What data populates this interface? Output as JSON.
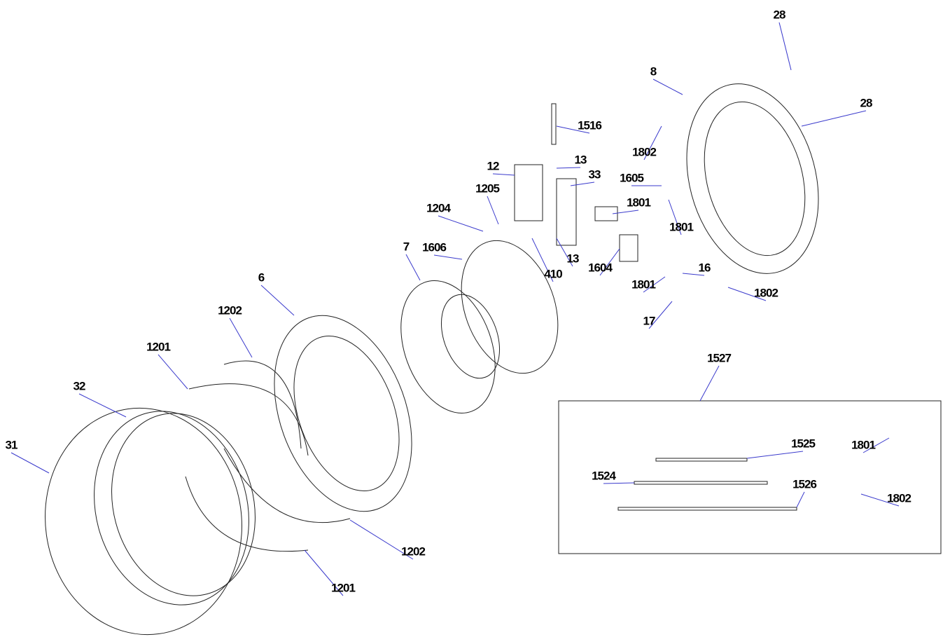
{
  "callouts": [
    {
      "label": "28"
    },
    {
      "label": "28"
    },
    {
      "label": "8"
    },
    {
      "label": "1516"
    },
    {
      "label": "1802"
    },
    {
      "label": "13"
    },
    {
      "label": "12"
    },
    {
      "label": "33"
    },
    {
      "label": "1605"
    },
    {
      "label": "1205"
    },
    {
      "label": "1801"
    },
    {
      "label": "1204"
    },
    {
      "label": "1801"
    },
    {
      "label": "7"
    },
    {
      "label": "1606"
    },
    {
      "label": "13"
    },
    {
      "label": "410"
    },
    {
      "label": "1604"
    },
    {
      "label": "16"
    },
    {
      "label": "6"
    },
    {
      "label": "1801"
    },
    {
      "label": "1802"
    },
    {
      "label": "1202"
    },
    {
      "label": "17"
    },
    {
      "label": "1527"
    },
    {
      "label": "1201"
    },
    {
      "label": "32"
    },
    {
      "label": "31"
    },
    {
      "label": "1525"
    },
    {
      "label": "1801"
    },
    {
      "label": "1524"
    },
    {
      "label": "1526"
    },
    {
      "label": "1802"
    },
    {
      "label": "1202"
    },
    {
      "label": "1201"
    }
  ]
}
